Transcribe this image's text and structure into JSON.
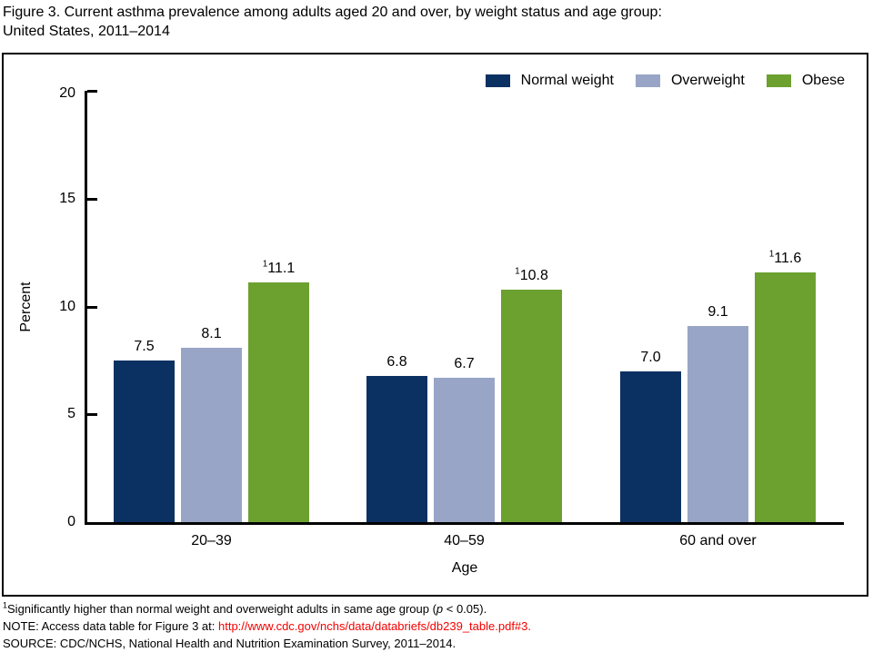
{
  "figure_title": {
    "line1": "Figure 3. Current asthma prevalence among adults aged 20 and over, by weight status and age group:",
    "line2": "United States, 2011–2014"
  },
  "chart_data": {
    "type": "bar",
    "title": "Current asthma prevalence among adults aged 20 and over, by weight status and age group: United States, 2011–2014",
    "categories": [
      "20–39",
      "40–59",
      "60 and over"
    ],
    "series": [
      {
        "name": "Normal weight",
        "color": "#0b3162",
        "values": [
          7.5,
          6.8,
          7.0
        ],
        "value_label_superscript": ""
      },
      {
        "name": "Overweight",
        "color": "#99a5c6",
        "values": [
          8.1,
          6.7,
          9.1
        ],
        "value_label_superscript": ""
      },
      {
        "name": "Obese",
        "color": "#6ca02f",
        "values": [
          11.1,
          10.8,
          11.6
        ],
        "value_label_superscript": "1"
      }
    ],
    "xlabel": "Age",
    "ylabel": "Percent",
    "ylim": [
      0,
      20
    ],
    "yticks": [
      0,
      5,
      10,
      15,
      20
    ],
    "grid": false,
    "legend_position": "top-right"
  },
  "footnotes": {
    "f1_sup": "1",
    "f1_before_p": "Significantly higher than normal weight and overweight adults in same age group (",
    "f1_p": "p",
    "f1_after_p": " < 0.05).",
    "note_label": "NOTE: Access data table for Figure 3 at: ",
    "note_link": "http://www.cdc.gov/nchs/data/databriefs/db239_table.pdf#3",
    "note_period": ".",
    "source": "SOURCE: CDC/NCHS, National Health and Nutrition Examination Survey, 2011–2014.",
    "link_color": "#f40000"
  }
}
